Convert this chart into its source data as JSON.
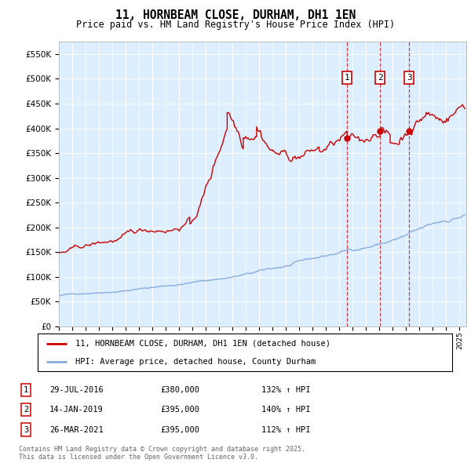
{
  "title": "11, HORNBEAM CLOSE, DURHAM, DH1 1EN",
  "subtitle": "Price paid vs. HM Land Registry's House Price Index (HPI)",
  "ylabel_ticks": [
    "£0",
    "£50K",
    "£100K",
    "£150K",
    "£200K",
    "£250K",
    "£300K",
    "£350K",
    "£400K",
    "£450K",
    "£500K",
    "£550K"
  ],
  "ytick_values": [
    0,
    50000,
    100000,
    150000,
    200000,
    250000,
    300000,
    350000,
    400000,
    450000,
    500000,
    550000
  ],
  "ylim": [
    0,
    575000
  ],
  "xlim_start": 1995.0,
  "xlim_end": 2025.5,
  "sale_dates": [
    2016.57,
    2019.04,
    2021.23
  ],
  "sale_prices": [
    380000,
    395000,
    395000
  ],
  "sale_labels": [
    "1",
    "2",
    "3"
  ],
  "sale_info": [
    {
      "num": "1",
      "date": "29-JUL-2016",
      "price": "£380,000",
      "hpi": "132% ↑ HPI"
    },
    {
      "num": "2",
      "date": "14-JAN-2019",
      "price": "£395,000",
      "hpi": "140% ↑ HPI"
    },
    {
      "num": "3",
      "date": "26-MAR-2021",
      "price": "£395,000",
      "hpi": "112% ↑ HPI"
    }
  ],
  "red_color": "#cc0000",
  "blue_color": "#88aadd",
  "dashed_color": "#cc0000",
  "plot_bg_color": "#ddeeff",
  "legend_text1": "11, HORNBEAM CLOSE, DURHAM, DH1 1EN (detached house)",
  "legend_text2": "HPI: Average price, detached house, County Durham",
  "footer": "Contains HM Land Registry data © Crown copyright and database right 2025.\nThis data is licensed under the Open Government Licence v3.0."
}
